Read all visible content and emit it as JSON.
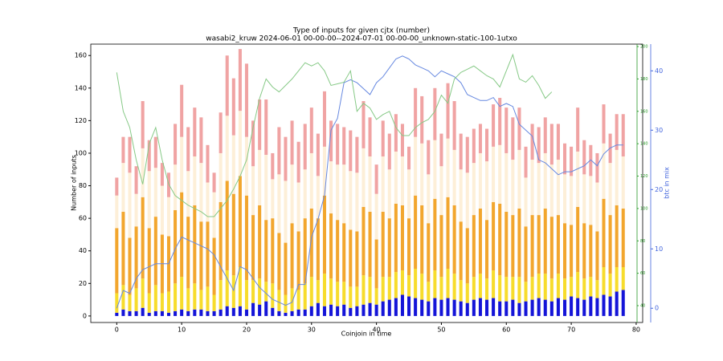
{
  "chart_data": {
    "type": "bar",
    "title": "Type of inputs for given cjtx (number)",
    "subtitle": "wasabi2_kruw 2024-06-01 00-00-00--2024-07-01 00-00-00_unknown-static-100-1utxo",
    "xlabel": "Coinjoin in time",
    "ylabel": "Number of inputs",
    "y2label": "btc in mix",
    "x": [
      0,
      1,
      2,
      3,
      4,
      5,
      6,
      7,
      8,
      9,
      10,
      11,
      12,
      13,
      14,
      15,
      16,
      17,
      18,
      19,
      20,
      21,
      22,
      23,
      24,
      25,
      26,
      27,
      28,
      29,
      30,
      31,
      32,
      33,
      34,
      35,
      36,
      37,
      38,
      39,
      40,
      41,
      42,
      43,
      44,
      45,
      46,
      47,
      48,
      49,
      50,
      51,
      52,
      53,
      54,
      55,
      56,
      57,
      58,
      59,
      60,
      61,
      62,
      63,
      64,
      65,
      66,
      67,
      68,
      69,
      70,
      71,
      72,
      73,
      74,
      75,
      76,
      77,
      78
    ],
    "xlim": [
      -4,
      81
    ],
    "xticks": [
      0,
      10,
      20,
      30,
      40,
      50,
      60,
      70,
      80
    ],
    "ylim": [
      -4,
      167
    ],
    "yticks": [
      0,
      20,
      40,
      60,
      80,
      100,
      120,
      140,
      160
    ],
    "y2lim": [
      -2.4,
      44.5
    ],
    "y2ticks": [
      0,
      10,
      20,
      30,
      40
    ],
    "y3lim": [
      29.6,
      201.5
    ],
    "y3ticks": [
      40,
      60,
      80,
      100,
      120,
      140,
      160,
      180,
      200
    ],
    "series": [
      {
        "type": "bar",
        "color": "#1414d8",
        "values": [
          2,
          4,
          3,
          3,
          5,
          2,
          3,
          3,
          2,
          3,
          4,
          3,
          4,
          4,
          3,
          3,
          4,
          6,
          5,
          6,
          4,
          8,
          7,
          9,
          5,
          3,
          2,
          3,
          4,
          4,
          6,
          8,
          6,
          7,
          6,
          7,
          5,
          6,
          7,
          8,
          7,
          9,
          10,
          11,
          13,
          12,
          11,
          10,
          9,
          11,
          10,
          11,
          10,
          9,
          8,
          10,
          11,
          10,
          11,
          9,
          9,
          10,
          8,
          9,
          10,
          11,
          10,
          9,
          11,
          10,
          12,
          11,
          10,
          12,
          11,
          13,
          12,
          15,
          16
        ]
      },
      {
        "type": "bar",
        "color": "#f7dc2c",
        "values": [
          12,
          15,
          10,
          14,
          18,
          12,
          16,
          11,
          13,
          17,
          20,
          14,
          16,
          12,
          15,
          10,
          18,
          22,
          20,
          24,
          18,
          14,
          16,
          12,
          15,
          13,
          11,
          14,
          12,
          16,
          18,
          14,
          20,
          16,
          15,
          14,
          13,
          12,
          18,
          16,
          10,
          15,
          14,
          16,
          15,
          13,
          18,
          16,
          12,
          17,
          14,
          18,
          16,
          13,
          12,
          14,
          15,
          13,
          17,
          16,
          15,
          14,
          16,
          12,
          14,
          15,
          16,
          14,
          15,
          13,
          12,
          16,
          13,
          12,
          11,
          17,
          14,
          15,
          14
        ]
      },
      {
        "type": "bar",
        "color": "#f2a62e",
        "values": [
          40,
          45,
          35,
          38,
          50,
          40,
          42,
          36,
          34,
          45,
          52,
          44,
          48,
          42,
          40,
          35,
          48,
          55,
          50,
          56,
          52,
          40,
          45,
          38,
          40,
          35,
          32,
          40,
          36,
          40,
          42,
          38,
          48,
          40,
          38,
          36,
          35,
          34,
          42,
          40,
          30,
          40,
          36,
          42,
          40,
          35,
          45,
          42,
          36,
          44,
          38,
          44,
          42,
          36,
          34,
          38,
          40,
          36,
          42,
          44,
          40,
          38,
          42,
          34,
          38,
          36,
          40,
          38,
          36,
          34,
          32,
          40,
          34,
          32,
          30,
          42,
          36,
          38,
          36
        ]
      },
      {
        "type": "bar",
        "color": "#fdefd8",
        "values": [
          20,
          30,
          40,
          20,
          30,
          35,
          30,
          30,
          24,
          28,
          34,
          28,
          30,
          36,
          24,
          28,
          30,
          40,
          36,
          40,
          36,
          30,
          34,
          40,
          24,
          36,
          38,
          36,
          30,
          30,
          34,
          26,
          30,
          32,
          34,
          36,
          36,
          36,
          36,
          34,
          28,
          34,
          30,
          32,
          30,
          30,
          36,
          38,
          30,
          36,
          30,
          36,
          34,
          32,
          34,
          32,
          34,
          36,
          34,
          36,
          36,
          34,
          36,
          30,
          34,
          32,
          34,
          32,
          34,
          30,
          30,
          34,
          30,
          30,
          30,
          34,
          32,
          34,
          32
        ]
      },
      {
        "type": "bar",
        "color": "#f0a3a3",
        "values": [
          11,
          16,
          22,
          17,
          29,
          19,
          19,
          14,
          15,
          25,
          32,
          27,
          30,
          28,
          23,
          12,
          25,
          37,
          35,
          38,
          45,
          28,
          31,
          34,
          16,
          29,
          27,
          27,
          25,
          28,
          28,
          26,
          34,
          25,
          25,
          23,
          25,
          22,
          29,
          24,
          18,
          22,
          22,
          23,
          20,
          14,
          30,
          29,
          21,
          32,
          20,
          34,
          30,
          22,
          22,
          21,
          18,
          20,
          26,
          29,
          28,
          26,
          26,
          19,
          22,
          22,
          22,
          25,
          22,
          19,
          18,
          27,
          21,
          19,
          18,
          24,
          18,
          22,
          26
        ]
      },
      {
        "type": "line",
        "axis": "y2",
        "color": "#6688e0",
        "values": [
          0,
          3,
          2.5,
          5,
          6.5,
          7,
          7.5,
          7.5,
          7.5,
          10,
          12,
          11.5,
          11,
          10.5,
          10,
          9,
          7,
          5,
          3,
          7,
          6.5,
          5,
          3.5,
          2.5,
          1.5,
          1,
          0.5,
          1,
          4,
          4,
          12,
          15,
          19,
          30,
          32,
          38,
          38.5,
          38,
          37,
          36,
          38,
          39,
          40.5,
          42,
          42.5,
          42,
          41,
          40.5,
          40,
          39,
          40,
          39.5,
          39,
          38,
          36,
          35.5,
          35,
          35,
          35.5,
          34,
          34.5,
          34,
          31,
          30,
          29,
          25,
          24.5,
          23.5,
          22.5,
          23,
          23,
          23.5,
          24,
          25,
          24,
          26,
          27,
          27.5,
          27.5
        ]
      },
      {
        "type": "line",
        "axis": "y3",
        "color": "#86c986",
        "values": [
          184,
          160,
          150,
          130,
          115,
          140,
          150,
          130,
          115,
          108,
          105,
          102,
          100,
          98,
          95,
          95,
          100,
          105,
          112,
          120,
          130,
          150,
          168,
          180,
          175,
          172,
          176,
          180,
          185,
          190,
          188,
          190,
          185,
          176,
          177,
          178,
          185,
          160,
          165,
          162,
          155,
          158,
          160,
          150,
          145,
          145,
          150,
          153,
          155,
          160,
          170,
          165,
          180,
          184,
          186,
          188,
          185,
          182,
          180,
          175,
          185,
          195,
          180,
          178,
          182,
          176,
          168,
          172,
          null,
          null,
          null,
          null,
          null,
          null,
          null,
          null,
          null,
          null,
          null
        ]
      }
    ]
  }
}
